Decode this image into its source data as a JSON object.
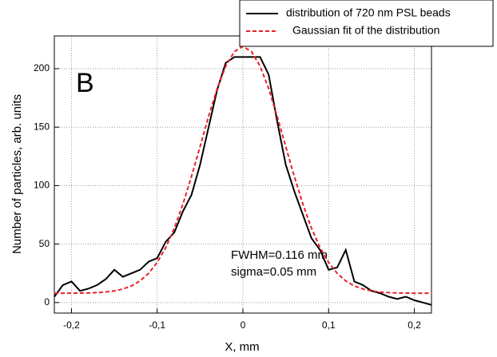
{
  "chart_data": {
    "type": "line",
    "xlabel": "X, mm",
    "ylabel": "Number of particles, arb. units",
    "annotations": [
      "B",
      "FWHM=0.116 mm",
      "sigma=0.05 mm"
    ],
    "x": [
      -0.22,
      -0.21,
      -0.2,
      -0.19,
      -0.18,
      -0.17,
      -0.16,
      -0.15,
      -0.14,
      -0.13,
      -0.12,
      -0.11,
      -0.1,
      -0.09,
      -0.08,
      -0.07,
      -0.06,
      -0.05,
      -0.04,
      -0.03,
      -0.02,
      -0.01,
      0,
      0.01,
      0.02,
      0.03,
      0.04,
      0.05,
      0.06,
      0.07,
      0.08,
      0.09,
      0.1,
      0.11,
      0.12,
      0.13,
      0.14,
      0.15,
      0.16,
      0.17,
      0.18,
      0.19,
      0.2,
      0.21,
      0.22
    ],
    "series": [
      {
        "name": "distribution of 720 nm PSL beads",
        "color": "#000000",
        "dash": "solid",
        "values": [
          5,
          15,
          18,
          10,
          12,
          15,
          20,
          28,
          22,
          25,
          28,
          35,
          38,
          52,
          60,
          78,
          92,
          118,
          150,
          182,
          205,
          210,
          210,
          210,
          210,
          195,
          155,
          118,
          95,
          75,
          55,
          45,
          28,
          30,
          45,
          18,
          15,
          10,
          8,
          5,
          3,
          5,
          2,
          0,
          -2
        ]
      },
      {
        "name": "Gaussian fit of the distribution",
        "color": "#e8202a",
        "dash": "dashed",
        "values": [
          8,
          8,
          8,
          8.1,
          8.2,
          8.5,
          9,
          9.9,
          11.6,
          14.2,
          18.5,
          25,
          34.3,
          47.1,
          63.7,
          84.1,
          107.7,
          133.4,
          159.3,
          183,
          202.2,
          214.6,
          219,
          214.6,
          202.2,
          183,
          159.3,
          133.4,
          107.7,
          84.1,
          63.7,
          47.1,
          34.3,
          25,
          18.5,
          14.2,
          11.6,
          9.9,
          9,
          8.5,
          8.2,
          8.1,
          8,
          8,
          8
        ]
      }
    ],
    "xlim": [
      -0.22,
      0.22
    ],
    "ylim": [
      -9,
      228
    ],
    "xticks": [
      {
        "value": -0.2,
        "label": "-0,2"
      },
      {
        "value": -0.1,
        "label": "-0,1"
      },
      0,
      {
        "value": 0.1,
        "label": "0,1"
      },
      {
        "value": 0.2,
        "label": "0,2"
      }
    ],
    "yticks": [
      0,
      50,
      100,
      150,
      200
    ],
    "grid": true,
    "legend": "top-right"
  }
}
